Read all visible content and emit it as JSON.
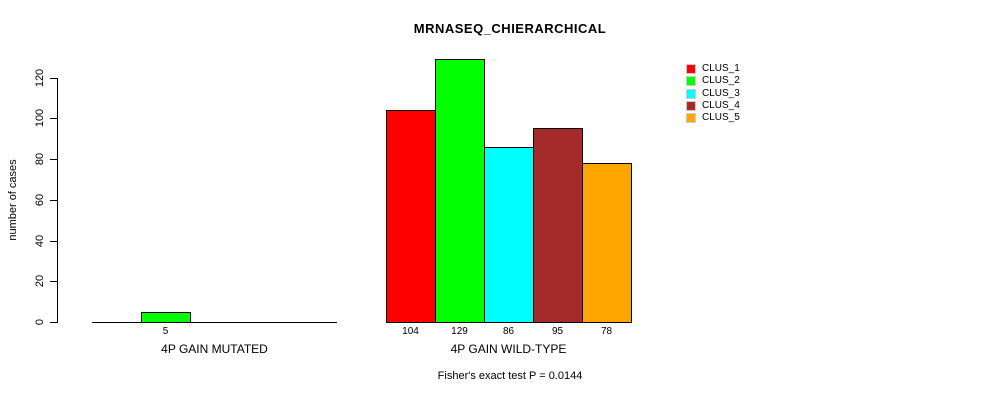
{
  "title": "MRNASEQ_CHIERARCHICAL",
  "footer": "Fisher's exact test P = 0.0144",
  "y_axis": {
    "label": "number of cases"
  },
  "chart_data": {
    "type": "bar",
    "title": "MRNASEQ_CHIERARCHICAL",
    "xlabel": "",
    "ylabel": "number of cases",
    "ylim": [
      0,
      120
    ],
    "yticks": [
      0,
      20,
      40,
      60,
      80,
      100,
      120
    ],
    "grid": false,
    "legend_position": "top-right",
    "categories": [
      "4P GAIN MUTATED",
      "4P GAIN WILD-TYPE"
    ],
    "series": [
      {
        "name": "CLUS_1",
        "color": "#FF0000",
        "values": [
          0,
          104
        ]
      },
      {
        "name": "CLUS_2",
        "color": "#00FF00",
        "values": [
          5,
          129
        ]
      },
      {
        "name": "CLUS_3",
        "color": "#00FFFF",
        "values": [
          0,
          86
        ]
      },
      {
        "name": "CLUS_4",
        "color": "#A52A2A",
        "values": [
          0,
          95
        ]
      },
      {
        "name": "CLUS_5",
        "color": "#FFA500",
        "values": [
          0,
          78
        ]
      }
    ],
    "bar_value_labels": {
      "4P GAIN MUTATED": [
        5
      ],
      "4P GAIN WILD-TYPE": [
        104,
        129,
        86,
        95,
        78
      ]
    },
    "annotation": "Fisher's exact test P = 0.0144"
  }
}
